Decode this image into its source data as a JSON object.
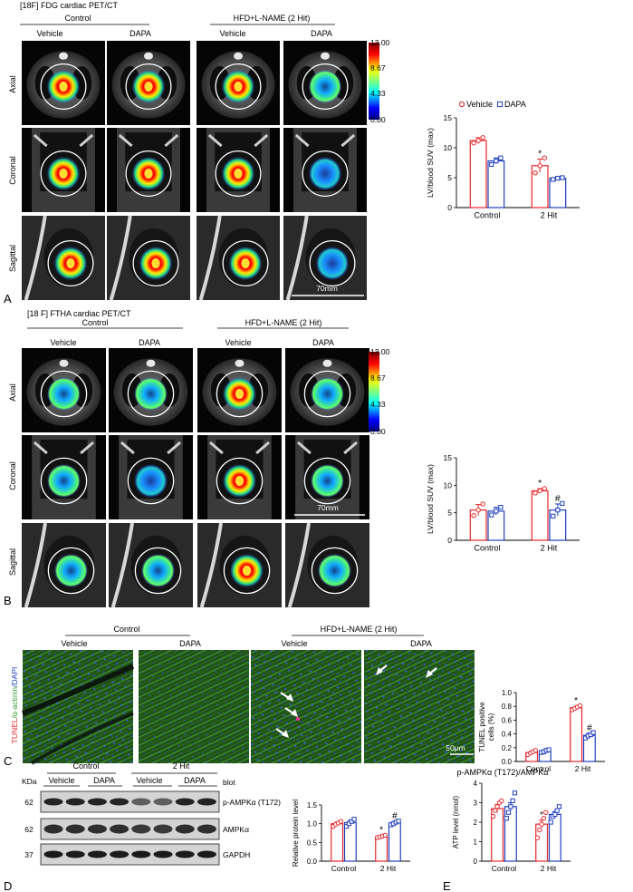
{
  "panel_a": {
    "letter": "A",
    "title": "[18F] FDG cardiac PET/CT",
    "group_control": "Control",
    "group_hit": "HFD+L-NAME (2 Hit)",
    "columns": [
      "Vehicle",
      "DAPA",
      "Vehicle",
      "DAPA"
    ],
    "rows": [
      "Axial",
      "Coronal",
      "Sagittal"
    ],
    "colorbar_ticks": [
      "13.00",
      "8.67",
      "4.33",
      "0.00"
    ],
    "scale_bar": "70mm"
  },
  "panel_b": {
    "letter": "B",
    "title": "[18 F] FTHA cardiac PET/CT",
    "group_control": "Control",
    "group_hit": "HFD+L-NAME (2 Hit)",
    "columns": [
      "Vehicle",
      "DAPA",
      "Vehicle",
      "DAPA"
    ],
    "rows": [
      "Axial",
      "Coronal",
      "Sagittal"
    ],
    "colorbar_ticks": [
      "13.00",
      "8.67",
      "4.33",
      "0.00"
    ],
    "scale_bar": "70mm"
  },
  "panel_c": {
    "letter": "C",
    "group_control": "Control",
    "group_hit": "HFD+L-NAME (2 Hit)",
    "columns": [
      "Vehicle",
      "DAPA",
      "Vehicle",
      "DAPA"
    ],
    "stain_label_red": "TUNEL",
    "stain_label_green": "/α-actinin",
    "stain_label_blue": "/DAPI",
    "scale_bar": "50μm"
  },
  "panel_d": {
    "letter": "D",
    "kda_label": "KDa",
    "blot_label": "blot",
    "group_control": "Control",
    "group_hit": "2 Hit",
    "lanes": [
      "Vehicle",
      "DAPA",
      "Vehicle",
      "DAPA"
    ],
    "bands": [
      {
        "kda": "62",
        "name": "p-AMPKα (T172)"
      },
      {
        "kda": "62",
        "name": "AMPKα"
      },
      {
        "kda": "37",
        "name": "GAPDH"
      }
    ]
  },
  "panel_e": {
    "letter": "E"
  },
  "colors": {
    "vehicle": "#e8262a",
    "dapa": "#1f3fbf"
  },
  "chart_data": [
    {
      "id": "A",
      "type": "bar",
      "categories": [
        "Control",
        "2 Hit"
      ],
      "ylabel": "LV/blood SUV (max)",
      "ylim": [
        0,
        15
      ],
      "yticks": [
        "0",
        "5",
        "10",
        "15"
      ],
      "legend": "top",
      "series": [
        {
          "name": "Vehicle",
          "values": [
            11.2,
            7.0
          ],
          "errors": [
            0.5,
            1.1
          ],
          "points": [
            [
              10.8,
              11.2,
              11.7
            ],
            [
              5.8,
              7.0,
              8.3
            ]
          ]
        },
        {
          "name": "DAPA",
          "values": [
            7.8,
            4.9
          ],
          "errors": [
            0.5,
            0.2
          ],
          "points": [
            [
              7.2,
              7.8,
              8.3
            ],
            [
              4.7,
              4.9,
              5.0
            ]
          ]
        }
      ],
      "annotations": [
        {
          "text": "*",
          "series": 0,
          "category": 1
        }
      ]
    },
    {
      "id": "B",
      "type": "bar",
      "categories": [
        "Control",
        "2 Hit"
      ],
      "ylabel": "LV/blood SUV (max)",
      "ylim": [
        0,
        15
      ],
      "yticks": [
        "0",
        "5",
        "10",
        "15"
      ],
      "series": [
        {
          "name": "Vehicle",
          "values": [
            5.5,
            9.0
          ],
          "errors": [
            1.0,
            0.4
          ],
          "points": [
            [
              4.5,
              5.5,
              6.6
            ],
            [
              8.6,
              9.0,
              9.4
            ]
          ]
        },
        {
          "name": "DAPA",
          "values": [
            5.3,
            5.5
          ],
          "errors": [
            0.7,
            1.1
          ],
          "points": [
            [
              4.6,
              5.3,
              6.0
            ],
            [
              4.4,
              5.5,
              6.7
            ]
          ]
        }
      ],
      "annotations": [
        {
          "text": "*",
          "series": 0,
          "category": 1
        },
        {
          "text": "#",
          "series": 1,
          "category": 1
        }
      ]
    },
    {
      "id": "C",
      "type": "bar",
      "categories": [
        "Control",
        "2 Hit"
      ],
      "ylabel": "TUNEL positive cells (%)",
      "ylim": [
        0,
        1.0
      ],
      "yticks": [
        "0.0",
        "0.2",
        "0.4",
        "0.6",
        "0.8",
        "1.0"
      ],
      "series": [
        {
          "name": "Vehicle",
          "values": [
            0.13,
            0.78
          ],
          "errors": [
            0.02,
            0.02
          ],
          "points": [
            [
              0.1,
              0.12,
              0.14,
              0.16
            ],
            [
              0.75,
              0.77,
              0.79,
              0.81
            ]
          ]
        },
        {
          "name": "DAPA",
          "values": [
            0.15,
            0.38
          ],
          "errors": [
            0.02,
            0.03
          ],
          "points": [
            [
              0.13,
              0.14,
              0.16,
              0.17
            ],
            [
              0.34,
              0.37,
              0.39,
              0.42
            ]
          ]
        }
      ],
      "annotations": [
        {
          "text": "*",
          "series": 0,
          "category": 1
        },
        {
          "text": "#",
          "series": 1,
          "category": 1
        }
      ]
    },
    {
      "id": "D",
      "type": "bar",
      "title": "p-AMPKα (T172)/AMPKα",
      "categories": [
        "Control",
        "2 Hit"
      ],
      "ylabel": "Relative protein level",
      "ylim": [
        0,
        1.5
      ],
      "yticks": [
        "0.0",
        "0.5",
        "1.0",
        "1.5"
      ],
      "series": [
        {
          "name": "Vehicle",
          "values": [
            1.0,
            0.66
          ],
          "errors": [
            0.04,
            0.03
          ],
          "points": [
            [
              0.93,
              0.98,
              1.02,
              1.06
            ],
            [
              0.63,
              0.65,
              0.67,
              0.69
            ]
          ]
        },
        {
          "name": "DAPA",
          "values": [
            1.03,
            1.02
          ],
          "errors": [
            0.06,
            0.04
          ],
          "points": [
            [
              0.93,
              1.0,
              1.06,
              1.12
            ],
            [
              0.97,
              1.0,
              1.04,
              1.07
            ]
          ]
        }
      ],
      "annotations": [
        {
          "text": "*",
          "series": 0,
          "category": 1
        },
        {
          "text": "#",
          "series": 1,
          "category": 1
        }
      ]
    },
    {
      "id": "E",
      "type": "bar",
      "categories": [
        "Control",
        "2 Hit"
      ],
      "ylabel": "ATP level (nmol)",
      "ylim": [
        0,
        4
      ],
      "yticks": [
        "0",
        "1",
        "2",
        "3",
        "4"
      ],
      "series": [
        {
          "name": "Vehicle",
          "values": [
            2.7,
            1.9
          ],
          "errors": [
            0.2,
            0.2
          ],
          "points": [
            [
              2.3,
              2.6,
              2.8,
              3.0,
              3.1
            ],
            [
              1.2,
              1.6,
              1.9,
              2.2,
              2.5
            ]
          ]
        },
        {
          "name": "DAPA",
          "values": [
            2.8,
            2.4
          ],
          "errors": [
            0.2,
            0.15
          ],
          "points": [
            [
              2.2,
              2.5,
              2.8,
              3.1,
              3.5
            ],
            [
              2.0,
              2.3,
              2.4,
              2.6,
              2.8
            ]
          ]
        }
      ],
      "annotations": [
        {
          "text": "*",
          "series": 0,
          "category": 1
        }
      ]
    }
  ]
}
